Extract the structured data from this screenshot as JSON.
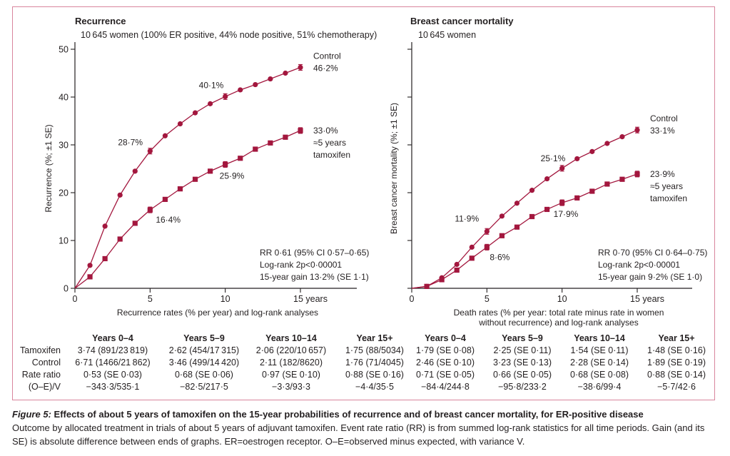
{
  "colors": {
    "series": "#a3173e",
    "frame": "#d9859d",
    "axis": "#231f20"
  },
  "panels": [
    {
      "title": "Recurrence",
      "subtitle": "10 645 women (100% ER positive, 44% node positive, 51% chemotherapy)",
      "stats": [
        "RR 0·61 (95% CI 0·57–0·65)",
        "Log-rank 2p<0·00001",
        "15-year gain 13·2% (SE 1·1)"
      ],
      "xlabel_lines": [
        "Recurrence rates (% per year) and log-rank analyses"
      ],
      "table": {
        "headers": [
          "Years 0–4",
          "Years 5–9",
          "Years 10–14",
          "Year 15+"
        ],
        "rows": [
          {
            "label": "Tamoxifen",
            "cells": [
              "3·74 (891/23 819)",
              "2·62 (454/17 315)",
              "2·06 (220/10 657)",
              "1·75 (88/5034)"
            ]
          },
          {
            "label": "Control",
            "cells": [
              "6·71 (1466/21 862)",
              "3·46 (499/14 420)",
              "2·11 (182/8620)",
              "1·76 (71/4045)"
            ]
          },
          {
            "label": "Rate ratio",
            "cells": [
              "0·53 (SE 0·03)",
              "0·68 (SE 0·06)",
              "0·97 (SE 0·10)",
              "0·88 (SE 0·16)"
            ]
          },
          {
            "label": "(O–E)/V",
            "cells": [
              "−343·3/535·1",
              "−82·5/217·5",
              "−3·3/93·3",
              "−4·4/35·5"
            ]
          }
        ]
      }
    },
    {
      "title": "Breast cancer mortality",
      "subtitle": "10 645 women",
      "stats": [
        "RR 0·70 (95% CI 0·64–0·75)",
        "Log-rank 2p<0·00001",
        "15-year gain 9·2% (SE 1·0)"
      ],
      "xlabel_lines": [
        "Death rates (% per year: total rate minus rate in women",
        "without recurrence) and log-rank analyses"
      ],
      "table": {
        "headers": [
          "Years 0–4",
          "Years 5–9",
          "Years 10–14",
          "Year 15+"
        ],
        "rows": [
          {
            "cells": [
              "1·79 (SE 0·08)",
              "2·25 (SE 0·11)",
              "1·54 (SE 0·11)",
              "1·48 (SE 0·16)"
            ]
          },
          {
            "cells": [
              "2·46 (SE 0·10)",
              "3·23 (SE 0·13)",
              "2·28 (SE 0·14)",
              "1·89 (SE 0·19)"
            ]
          },
          {
            "cells": [
              "0·71 (SE 0·05)",
              "0·66 (SE 0·05)",
              "0·68 (SE 0·08)",
              "0·88 (SE 0·14)"
            ]
          },
          {
            "cells": [
              "−84·4/244·8",
              "−95·8/233·2",
              "−38·6/99·4",
              "−5·7/42·6"
            ]
          }
        ]
      }
    }
  ],
  "caption": {
    "figure_label": "Figure 5:",
    "title": " Effects of about 5 years of tamoxifen on the 15-year probabilities of recurrence and of breast cancer mortality, for ER-positive disease",
    "body": "Outcome by allocated treatment in trials of about 5 years of adjuvant tamoxifen. Event rate ratio (RR) is from summed log-rank statistics for all time periods. Gain (and its SE) is absolute difference between ends of graphs. ER=oestrogen receptor. O–E=observed minus expected, with variance V."
  },
  "chart_data": [
    {
      "type": "line",
      "title": "Recurrence",
      "subtitle": "10 645 women (100% ER positive, 44% node positive, 51% chemotherapy)",
      "xlabel": "Recurrence rates (% per year) and log-rank analyses",
      "ylabel": "Recurrence (%; ±1 SE)",
      "xlim": [
        0,
        15
      ],
      "ylim": [
        0,
        50
      ],
      "xticks": [
        0,
        5,
        10,
        15
      ],
      "xtick_labels": [
        "0",
        "5",
        "10",
        "15 years"
      ],
      "yticks": [
        0,
        10,
        20,
        30,
        40,
        50
      ],
      "ytick_labels": [
        "0",
        "10",
        "20",
        "30",
        "40",
        "50"
      ],
      "grid": false,
      "x": [
        0,
        1,
        2,
        3,
        4,
        5,
        6,
        7,
        8,
        9,
        10,
        11,
        12,
        13,
        14,
        15
      ],
      "series": [
        {
          "name": "Control",
          "marker": "circle",
          "values": [
            0,
            4.8,
            13.0,
            19.5,
            24.5,
            28.7,
            31.9,
            34.4,
            36.7,
            38.6,
            40.1,
            41.5,
            42.6,
            43.8,
            45.0,
            46.2
          ],
          "error_bars_at": [
            5,
            10,
            15
          ],
          "end_label": [
            "Control",
            "46·2%"
          ]
        },
        {
          "name": "≈5 years tamoxifen",
          "marker": "square",
          "values": [
            0,
            2.4,
            6.2,
            10.3,
            13.6,
            16.4,
            18.6,
            20.8,
            22.8,
            24.5,
            25.9,
            27.2,
            29.1,
            30.4,
            31.6,
            33.0
          ],
          "error_bars_at": [
            5,
            10,
            15
          ],
          "end_label": [
            "33·0%",
            "≈5 years",
            "tamoxifen"
          ]
        }
      ],
      "annotations": [
        {
          "text": "28·7%",
          "x": 5,
          "series": "Control"
        },
        {
          "text": "40·1%",
          "x": 10,
          "series": "Control"
        },
        {
          "text": "16·4%",
          "x": 5,
          "series": "≈5 years tamoxifen"
        },
        {
          "text": "25·9%",
          "x": 10,
          "series": "≈5 years tamoxifen"
        }
      ]
    },
    {
      "type": "line",
      "title": "Breast cancer mortality",
      "subtitle": "10 645 women",
      "xlabel": "Death rates (% per year: total rate minus rate in women without recurrence) and log-rank analyses",
      "ylabel": "Breast cancer mortality (%; ±1 SE)",
      "xlim": [
        0,
        15
      ],
      "ylim": [
        0,
        50
      ],
      "xticks": [
        0,
        5,
        10,
        15
      ],
      "xtick_labels": [
        "0",
        "5",
        "10",
        "15 years"
      ],
      "yticks": [
        0,
        10,
        20,
        30,
        40,
        50
      ],
      "ytick_labels": [],
      "grid": false,
      "x": [
        0,
        1,
        2,
        3,
        4,
        5,
        6,
        7,
        8,
        9,
        10,
        11,
        12,
        13,
        14,
        15
      ],
      "series": [
        {
          "name": "Control",
          "marker": "circle",
          "values": [
            0,
            0.4,
            2.2,
            5.0,
            8.6,
            11.9,
            15.1,
            17.8,
            20.5,
            22.9,
            25.1,
            27.1,
            28.6,
            30.3,
            31.7,
            33.1
          ],
          "error_bars_at": [
            5,
            10,
            15
          ],
          "end_label": [
            "Control",
            "33·1%"
          ]
        },
        {
          "name": "≈5 years tamoxifen",
          "marker": "square",
          "values": [
            0,
            0.4,
            1.8,
            3.8,
            6.3,
            8.6,
            11.0,
            12.8,
            15.0,
            16.5,
            17.9,
            18.9,
            20.3,
            21.8,
            22.8,
            23.9
          ],
          "error_bars_at": [
            5,
            10,
            15
          ],
          "end_label": [
            "23·9%",
            "≈5 years",
            "tamoxifen"
          ]
        }
      ],
      "annotations": [
        {
          "text": "11·9%",
          "x": 5,
          "series": "Control"
        },
        {
          "text": "25·1%",
          "x": 10,
          "series": "Control"
        },
        {
          "text": "8·6%",
          "x": 5,
          "series": "≈5 years tamoxifen"
        },
        {
          "text": "17·9%",
          "x": 10,
          "series": "≈5 years tamoxifen"
        }
      ]
    }
  ]
}
